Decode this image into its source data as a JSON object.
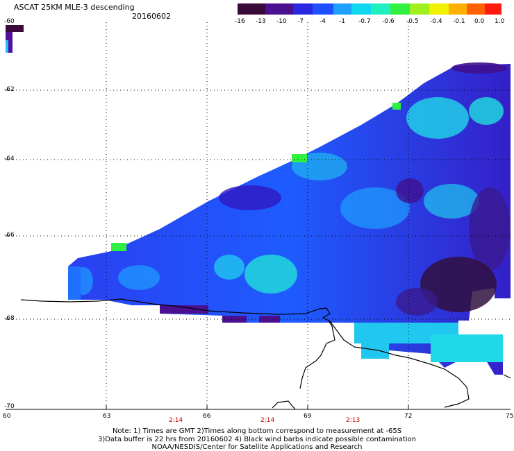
{
  "header": {
    "title": "ASCAT 25KM MLE-3 descending",
    "date": "20160602"
  },
  "colorbar": {
    "labels": [
      "-16",
      "-13",
      "-10",
      "-7",
      "-4",
      "-1",
      "-0.7",
      "-0.6",
      "-0.5",
      "-0.4",
      "-0.1",
      "0.0",
      "1.0"
    ],
    "colors": [
      "#3a0a3a",
      "#5a1a8a",
      "#3a1ad0",
      "#1e50ff",
      "#1ea0ff",
      "#10e0f0",
      "#20f0c0",
      "#40f050",
      "#a0f020",
      "#f0f000",
      "#ffa000",
      "#ff5000",
      "#ff1010"
    ]
  },
  "axes": {
    "y_ticks": [
      "-60",
      "-62",
      "-64",
      "-66",
      "-68",
      "-70"
    ],
    "x_ticks": [
      "60",
      "63",
      "66",
      "69",
      "72",
      "75"
    ],
    "times": [
      "2:14",
      "2:14",
      "2:13"
    ]
  },
  "notes": [
    "Note: 1) Times are GMT 2)Times along bottom correspond to measurement at -65S",
    "3)Data buffer is 22 hrs from 20160602 4) Black wind barbs indicate possible contamination",
    "NOAA/NESDIS/Center for Satellite Applications and Research"
  ]
}
